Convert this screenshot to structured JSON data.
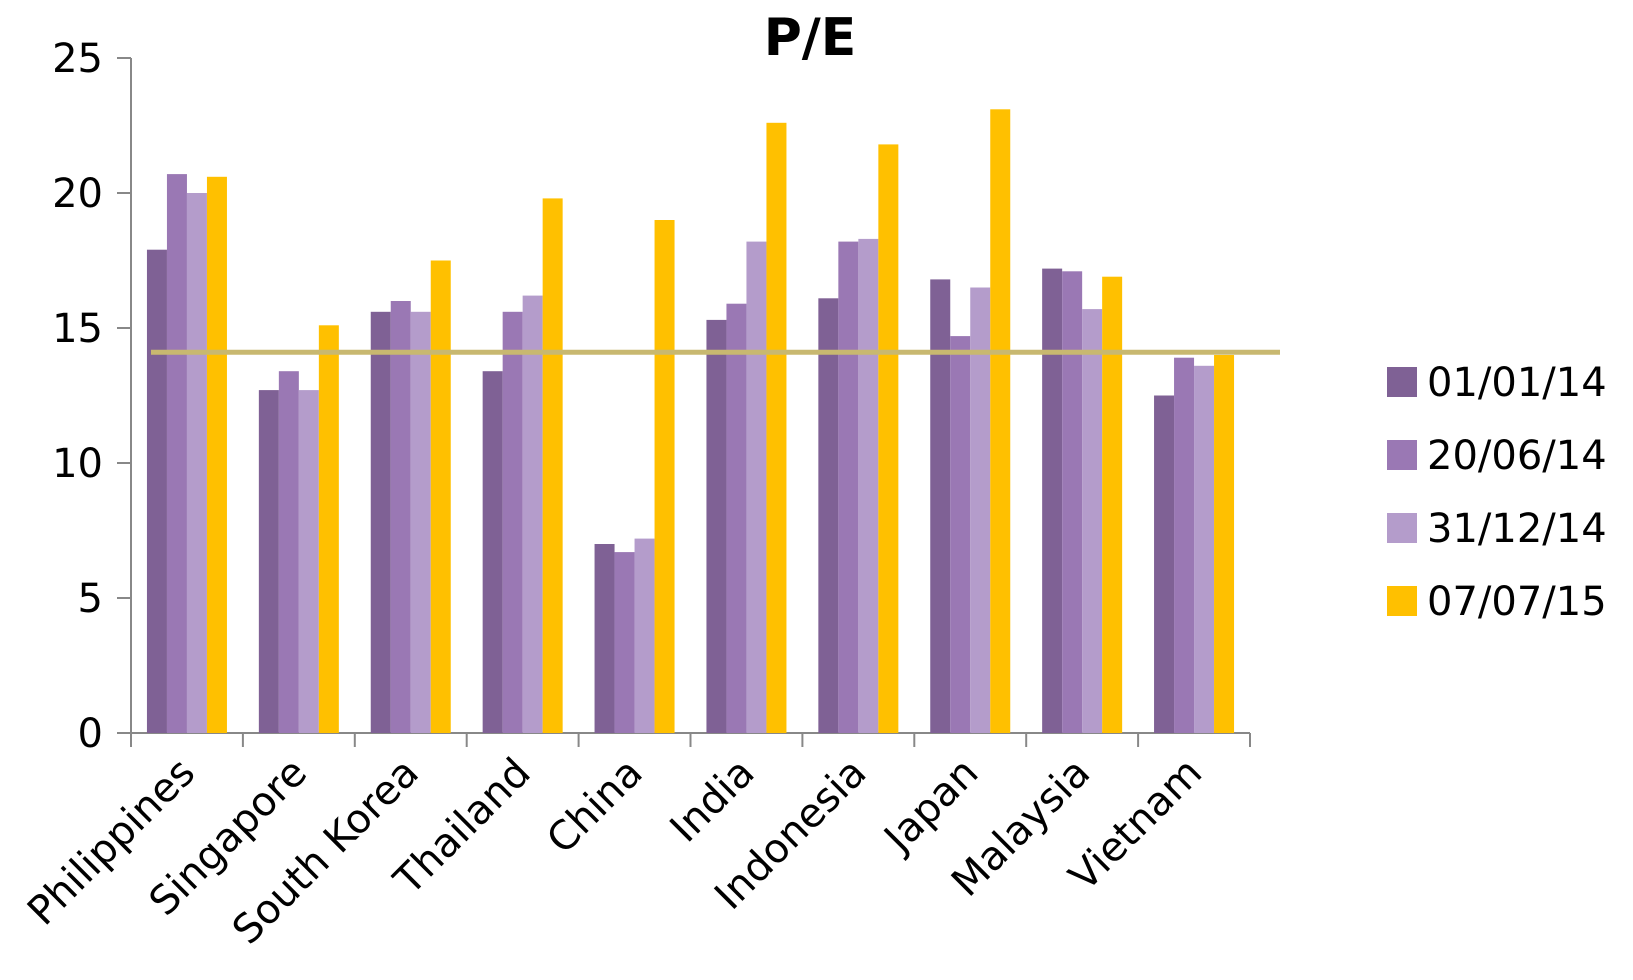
{
  "chart_data": {
    "type": "bar",
    "title": "P/E",
    "xlabel": "",
    "ylabel": "",
    "ylim": [
      0,
      25
    ],
    "yticks": [
      "0",
      "5",
      "10",
      "15",
      "20",
      "25"
    ],
    "grid": false,
    "legend_position": "right",
    "categories": [
      "Philippines",
      "Singapore",
      "South Korea",
      "Thailand",
      "China",
      "India",
      "Indonesia",
      "Japan",
      "Malaysia",
      "Vietnam"
    ],
    "series": [
      {
        "name": "01/01/14",
        "color": "#7f6195",
        "values": [
          17.9,
          12.7,
          15.6,
          13.4,
          7.0,
          15.3,
          16.1,
          16.8,
          17.2,
          12.5
        ]
      },
      {
        "name": "20/06/14",
        "color": "#9a78b4",
        "values": [
          20.7,
          13.4,
          16.0,
          15.6,
          6.7,
          15.9,
          18.2,
          14.7,
          17.1,
          13.9
        ]
      },
      {
        "name": "31/12/14",
        "color": "#b49ccb",
        "values": [
          20.0,
          12.7,
          15.6,
          16.2,
          7.2,
          18.2,
          18.3,
          16.5,
          15.7,
          13.6
        ]
      },
      {
        "name": "07/07/15",
        "color": "#ffc000",
        "values": [
          20.6,
          15.1,
          17.5,
          19.8,
          19.0,
          22.6,
          21.8,
          23.1,
          16.9,
          14.0
        ]
      }
    ],
    "reference_line": {
      "value": 14.1,
      "color": "#c8b870"
    }
  }
}
